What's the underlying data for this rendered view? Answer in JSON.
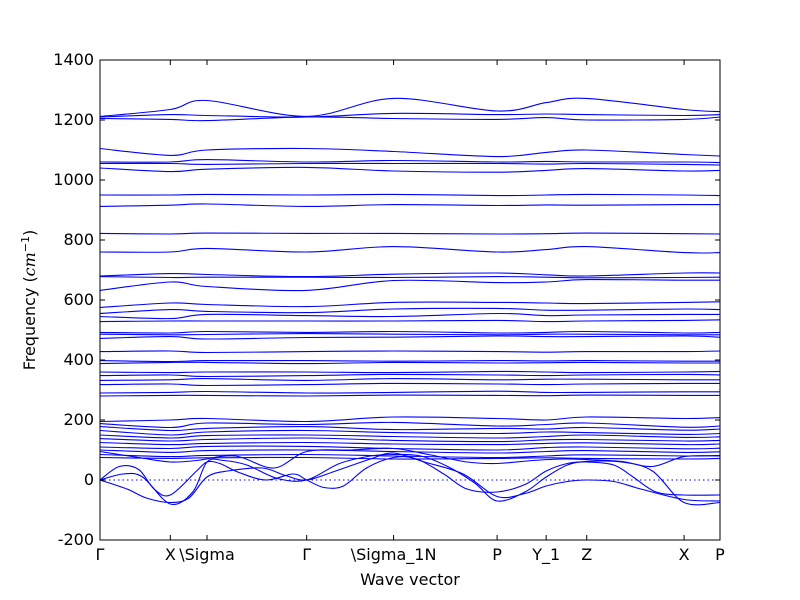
{
  "chart_data": {
    "type": "line",
    "xlabel": "Wave vector",
    "ylabel": "Frequency (cm^-1)",
    "ylabel_prefix": "Frequency (",
    "ylabel_unit": "cm",
    "ylabel_exp": "−1",
    "ylabel_suffix": ")",
    "ylim": [
      -200,
      1400
    ],
    "yticks": [
      -200,
      0,
      200,
      400,
      600,
      800,
      1000,
      1200,
      1400
    ],
    "xlim": [
      0,
      16.05
    ],
    "xticks": [
      {
        "label": "Γ",
        "x": 0
      },
      {
        "label": "X",
        "x": 1.82
      },
      {
        "label": "\\Sigma",
        "x": 2.77
      },
      {
        "label": "Γ",
        "x": 5.35
      },
      {
        "label": "\\Sigma_1N",
        "x": 7.6
      },
      {
        "label": "P",
        "x": 10.28
      },
      {
        "label": "Y_1",
        "x": 11.55
      },
      {
        "label": "Z",
        "x": 12.6
      },
      {
        "label": "X",
        "x": 15.12
      },
      {
        "label": "P",
        "x": 16.05
      }
    ],
    "zero_line": {
      "y": 0,
      "style": "dotted"
    },
    "series_color": "#0000ff",
    "high_bands": [
      {
        "x": [
          0,
          1.82,
          2.77,
          5.35,
          7.6,
          10.28,
          11.55,
          12.6,
          15.12,
          16.05
        ],
        "y": [
          1212,
          1235,
          1265,
          1212,
          1272,
          1230,
          1258,
          1272,
          1235,
          1228
        ]
      },
      {
        "x": [
          0,
          1.82,
          2.77,
          5.35,
          7.6,
          10.28,
          11.55,
          12.6,
          15.12,
          16.05
        ],
        "y": [
          1210,
          1218,
          1215,
          1210,
          1222,
          1218,
          1220,
          1218,
          1215,
          1218
        ]
      },
      {
        "x": [
          0,
          1.82,
          2.77,
          5.35,
          7.6,
          10.28,
          11.55,
          12.6,
          15.12,
          16.05
        ],
        "y": [
          1205,
          1202,
          1198,
          1210,
          1205,
          1202,
          1208,
          1200,
          1202,
          1210
        ]
      },
      {
        "x": [
          0,
          1.82,
          2.77,
          5.35,
          7.6,
          10.28,
          11.55,
          12.6,
          15.12,
          16.05
        ],
        "y": [
          1105,
          1082,
          1100,
          1105,
          1095,
          1078,
          1092,
          1100,
          1085,
          1080
        ]
      },
      {
        "x": [
          0,
          1.82,
          2.77,
          5.35,
          7.6,
          10.28,
          11.55,
          12.6,
          15.12,
          16.05
        ],
        "y": [
          1060,
          1060,
          1068,
          1060,
          1065,
          1060,
          1062,
          1060,
          1060,
          1058
        ]
      },
      {
        "x": [
          0,
          1.82,
          2.77,
          5.35,
          7.6,
          10.28,
          11.55,
          12.6,
          15.12,
          16.05
        ],
        "y": [
          1055,
          1055,
          1052,
          1055,
          1055,
          1055,
          1053,
          1055,
          1052,
          1050
        ]
      },
      {
        "x": [
          0,
          1.82,
          2.77,
          5.35,
          7.6,
          10.28,
          11.55,
          12.6,
          15.12,
          16.05
        ],
        "y": [
          1040,
          1028,
          1036,
          1042,
          1030,
          1026,
          1032,
          1038,
          1030,
          1032
        ]
      },
      {
        "x": [
          0,
          1.82,
          2.77,
          5.35,
          7.6,
          10.28,
          11.55,
          12.6,
          15.12,
          16.05
        ],
        "y": [
          950,
          950,
          952,
          950,
          952,
          948,
          950,
          952,
          950,
          948
        ]
      },
      {
        "x": [
          0,
          1.82,
          2.77,
          5.35,
          7.6,
          10.28,
          11.55,
          12.6,
          15.12,
          16.05
        ],
        "y": [
          912,
          916,
          920,
          912,
          918,
          915,
          917,
          916,
          918,
          918
        ]
      },
      {
        "x": [
          0,
          1.82,
          2.77,
          5.35,
          7.6,
          10.28,
          11.55,
          12.6,
          15.12,
          16.05
        ],
        "y": [
          822,
          820,
          823,
          822,
          822,
          820,
          821,
          823,
          821,
          820
        ]
      },
      {
        "x": [
          0,
          1.82,
          2.77,
          5.35,
          7.6,
          10.28,
          11.55,
          12.6,
          15.12,
          16.05
        ],
        "y": [
          760,
          760,
          772,
          760,
          778,
          760,
          768,
          778,
          758,
          758
        ]
      },
      {
        "x": [
          0,
          1.82,
          2.77,
          5.35,
          7.6,
          10.28,
          11.55,
          12.6,
          15.12,
          16.05
        ],
        "y": [
          680,
          688,
          685,
          678,
          686,
          690,
          684,
          680,
          690,
          690
        ]
      },
      {
        "x": [
          0,
          1.82,
          2.77,
          5.35,
          7.6,
          10.28,
          11.55,
          12.6,
          15.12,
          16.05
        ],
        "y": [
          678,
          675,
          676,
          676,
          675,
          678,
          676,
          674,
          675,
          676
        ]
      },
      {
        "x": [
          0,
          1.82,
          2.77,
          5.35,
          7.6,
          10.28,
          11.55,
          12.6,
          15.12,
          16.05
        ],
        "y": [
          632,
          660,
          645,
          632,
          665,
          658,
          660,
          668,
          666,
          666
        ]
      },
      {
        "x": [
          0,
          1.82,
          2.77,
          5.35,
          7.6,
          10.28,
          11.55,
          12.6,
          15.12,
          16.05
        ],
        "y": [
          575,
          590,
          585,
          578,
          592,
          592,
          590,
          588,
          592,
          594
        ]
      },
      {
        "x": [
          0,
          1.82,
          2.77,
          5.35,
          7.6,
          10.28,
          11.55,
          12.6,
          15.12,
          16.05
        ],
        "y": [
          555,
          568,
          562,
          558,
          570,
          572,
          566,
          566,
          570,
          568
        ]
      },
      {
        "x": [
          0,
          1.82,
          2.77,
          5.35,
          7.6,
          10.28,
          11.55,
          12.6,
          15.12,
          16.05
        ],
        "y": [
          545,
          538,
          552,
          548,
          545,
          555,
          548,
          550,
          552,
          552
        ]
      },
      {
        "x": [
          0,
          1.82,
          2.77,
          5.35,
          7.6,
          10.28,
          11.55,
          12.6,
          15.12,
          16.05
        ],
        "y": [
          528,
          530,
          530,
          530,
          530,
          532,
          528,
          530,
          532,
          534
        ]
      },
      {
        "x": [
          0,
          1.82,
          2.77,
          5.35,
          7.6,
          10.28,
          11.55,
          12.6,
          15.12,
          16.05
        ],
        "y": [
          492,
          490,
          495,
          492,
          495,
          490,
          492,
          495,
          490,
          492
        ]
      },
      {
        "x": [
          0,
          1.82,
          2.77,
          5.35,
          7.6,
          10.28,
          11.55,
          12.6,
          15.12,
          16.05
        ],
        "y": [
          486,
          484,
          485,
          488,
          486,
          484,
          486,
          486,
          484,
          484
        ]
      },
      {
        "x": [
          0,
          1.82,
          2.77,
          5.35,
          7.6,
          10.28,
          11.55,
          12.6,
          15.12,
          16.05
        ],
        "y": [
          472,
          478,
          470,
          475,
          476,
          480,
          478,
          478,
          480,
          476
        ]
      },
      {
        "x": [
          0,
          1.82,
          2.77,
          5.35,
          7.6,
          10.28,
          11.55,
          12.6,
          15.12,
          16.05
        ],
        "y": [
          428,
          430,
          425,
          428,
          430,
          428,
          426,
          428,
          428,
          430
        ]
      },
      {
        "x": [
          0,
          1.82,
          2.77,
          5.35,
          7.6,
          10.28,
          11.55,
          12.6,
          15.12,
          16.05
        ],
        "y": [
          398,
          395,
          398,
          398,
          396,
          398,
          397,
          398,
          396,
          396
        ]
      },
      {
        "x": [
          0,
          1.82,
          2.77,
          5.35,
          7.6,
          10.28,
          11.55,
          12.6,
          15.12,
          16.05
        ],
        "y": [
          388,
          392,
          392,
          388,
          392,
          390,
          391,
          392,
          390,
          390
        ]
      },
      {
        "x": [
          0,
          1.82,
          2.77,
          5.35,
          7.6,
          10.28,
          11.55,
          12.6,
          15.12,
          16.05
        ],
        "y": [
          360,
          358,
          360,
          360,
          358,
          362,
          360,
          358,
          360,
          362
        ]
      },
      {
        "x": [
          0,
          1.82,
          2.77,
          5.35,
          7.6,
          10.28,
          11.55,
          12.6,
          15.12,
          16.05
        ],
        "y": [
          348,
          350,
          345,
          348,
          352,
          350,
          348,
          350,
          352,
          350
        ]
      },
      {
        "x": [
          0,
          1.82,
          2.77,
          5.35,
          7.6,
          10.28,
          11.55,
          12.6,
          15.12,
          16.05
        ],
        "y": [
          332,
          334,
          338,
          332,
          338,
          334,
          336,
          336,
          334,
          334
        ]
      },
      {
        "x": [
          0,
          1.82,
          2.77,
          5.35,
          7.6,
          10.28,
          11.55,
          12.6,
          15.12,
          16.05
        ],
        "y": [
          318,
          320,
          315,
          318,
          322,
          320,
          318,
          320,
          322,
          322
        ]
      },
      {
        "x": [
          0,
          1.82,
          2.77,
          5.35,
          7.6,
          10.28,
          11.55,
          12.6,
          15.12,
          16.05
        ],
        "y": [
          290,
          292,
          295,
          290,
          292,
          296,
          292,
          292,
          294,
          294
        ]
      },
      {
        "x": [
          0,
          1.82,
          2.77,
          5.35,
          7.6,
          10.28,
          11.55,
          12.6,
          15.12,
          16.05
        ],
        "y": [
          280,
          282,
          282,
          280,
          283,
          282,
          281,
          283,
          282,
          282
        ]
      }
    ],
    "low_bands": [
      {
        "x": [
          0,
          1.82,
          2.77,
          5.35,
          7.6,
          10.28,
          11.55,
          12.6,
          15.12,
          16.05
        ],
        "y": [
          195,
          200,
          205,
          195,
          210,
          205,
          200,
          210,
          205,
          208
        ]
      },
      {
        "x": [
          0,
          1.82,
          2.77,
          5.35,
          7.6,
          10.28,
          11.55,
          12.6,
          15.12,
          16.05
        ],
        "y": [
          188,
          175,
          190,
          185,
          192,
          180,
          185,
          190,
          176,
          180
        ]
      },
      {
        "x": [
          0,
          1.82,
          2.77,
          5.35,
          7.6,
          10.28,
          11.55,
          12.6,
          15.12,
          16.05
        ],
        "y": [
          178,
          165,
          172,
          178,
          168,
          172,
          170,
          175,
          166,
          170
        ]
      },
      {
        "x": [
          0,
          1.82,
          2.77,
          5.35,
          7.6,
          10.28,
          11.55,
          12.6,
          15.12,
          16.05
        ],
        "y": [
          165,
          150,
          160,
          165,
          158,
          155,
          160,
          158,
          152,
          155
        ]
      },
      {
        "x": [
          0,
          1.82,
          2.77,
          5.35,
          7.6,
          10.28,
          11.55,
          12.6,
          15.12,
          16.05
        ],
        "y": [
          150,
          140,
          148,
          150,
          145,
          140,
          145,
          150,
          142,
          144
        ]
      },
      {
        "x": [
          0,
          1.82,
          2.77,
          5.35,
          7.6,
          10.28,
          11.55,
          12.6,
          15.12,
          16.05
        ],
        "y": [
          138,
          130,
          135,
          140,
          132,
          128,
          134,
          135,
          130,
          132
        ]
      },
      {
        "x": [
          0,
          1.82,
          2.77,
          5.35,
          7.6,
          10.28,
          11.55,
          12.6,
          15.12,
          16.05
        ],
        "y": [
          125,
          118,
          122,
          125,
          120,
          118,
          122,
          124,
          118,
          120
        ]
      },
      {
        "x": [
          0,
          1.82,
          2.77,
          5.35,
          7.6,
          10.28,
          11.55,
          12.6,
          15.12,
          16.05
        ],
        "y": [
          110,
          105,
          112,
          112,
          105,
          100,
          108,
          110,
          104,
          106
        ]
      },
      {
        "x": [
          0,
          1.82,
          2.77,
          5.35,
          7.6,
          10.28,
          11.55,
          12.6,
          15.12,
          16.05
        ],
        "y": [
          100,
          92,
          98,
          100,
          95,
          90,
          95,
          98,
          92,
          94
        ]
      },
      {
        "x": [
          0,
          1.82,
          2.77,
          5.35,
          7.6,
          10.28,
          11.55,
          12.6,
          15.12,
          16.05
        ],
        "y": [
          85,
          78,
          82,
          85,
          80,
          75,
          80,
          84,
          80,
          82
        ]
      },
      {
        "x": [
          0,
          1.82,
          2.77,
          5.35,
          7.6,
          10.28,
          11.55,
          12.6,
          15.12,
          16.05
        ],
        "y": [
          75,
          72,
          74,
          75,
          70,
          72,
          74,
          72,
          70,
          72
        ]
      }
    ],
    "acoustic_bands": [
      {
        "x": [
          0,
          0.7,
          1.2,
          1.82,
          2.3,
          2.77,
          3.3,
          4.2,
          4.8,
          5.35,
          6.1,
          7.0,
          7.6,
          8.4,
          9.4,
          10.28,
          11.0,
          11.55,
          12.1,
          12.6,
          13.3,
          14.0,
          15.12,
          16.05
        ],
        "y": [
          0,
          -30,
          -60,
          -75,
          -60,
          10,
          30,
          40,
          15,
          0,
          30,
          70,
          90,
          60,
          20,
          -55,
          -45,
          -20,
          -5,
          0,
          -5,
          -30,
          -65,
          -70
        ]
      },
      {
        "x": [
          0,
          0.5,
          1.0,
          1.4,
          1.82,
          2.5,
          2.77,
          3.1,
          3.6,
          4.3,
          5.0,
          5.35,
          5.8,
          6.3,
          6.9,
          7.6,
          8.2,
          8.9,
          9.5,
          10.28,
          11.0,
          11.55,
          12.1,
          12.6,
          13.3,
          13.8,
          14.4,
          15.12,
          16.05
        ],
        "y": [
          0,
          45,
          35,
          -30,
          -50,
          30,
          60,
          55,
          25,
          0,
          20,
          0,
          -25,
          -20,
          40,
          75,
          70,
          20,
          -30,
          -40,
          -15,
          30,
          55,
          60,
          50,
          10,
          -40,
          -50,
          -50
        ]
      },
      {
        "x": [
          0,
          0.6,
          1.1,
          1.82,
          2.4,
          2.77,
          3.2,
          3.8,
          4.6,
          5.35,
          6.2,
          7.0,
          7.6,
          8.3,
          9.0,
          9.7,
          10.28,
          11.0,
          11.55,
          12.1,
          12.6,
          13.5,
          14.3,
          15.12,
          16.05
        ],
        "y": [
          0,
          20,
          10,
          -80,
          -40,
          60,
          65,
          50,
          5,
          0,
          55,
          80,
          85,
          80,
          45,
          -10,
          -70,
          -40,
          10,
          50,
          62,
          60,
          30,
          -75,
          -75
        ]
      },
      {
        "x": [
          0,
          1.0,
          1.82,
          2.5,
          3.5,
          4.5,
          5.35,
          6.5,
          7.6,
          8.5,
          9.5,
          10.28,
          11.2,
          12.0,
          12.6,
          13.5,
          14.3,
          15.12,
          16.05
        ],
        "y": [
          95,
          75,
          60,
          65,
          80,
          40,
          95,
          100,
          105,
          85,
          60,
          55,
          65,
          70,
          68,
          62,
          45,
          78,
          80
        ]
      }
    ]
  }
}
